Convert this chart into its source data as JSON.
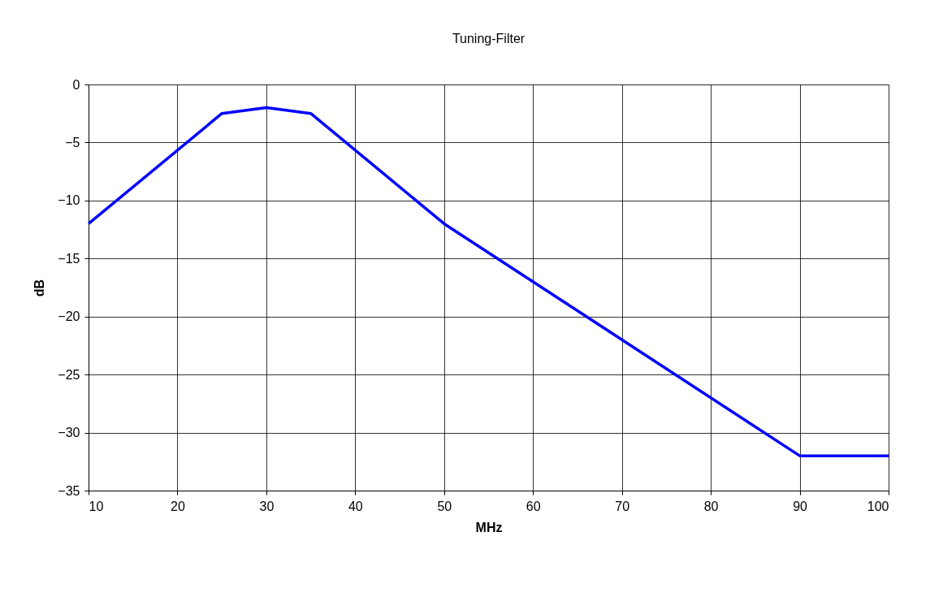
{
  "chart_data": {
    "type": "line",
    "title": "Tuning-Filter",
    "xlabel": "MHz",
    "ylabel": "dB",
    "x": [
      10,
      25,
      30,
      35,
      50,
      90,
      100
    ],
    "series": [
      {
        "color": "#0000ff",
        "values": [
          -12,
          -2.5,
          -2,
          -2.5,
          -12,
          -32,
          -32
        ]
      }
    ],
    "xlim": [
      10,
      100
    ],
    "xticks": [
      10,
      20,
      30,
      40,
      50,
      60,
      70,
      80,
      90,
      100
    ],
    "ylim": [
      -35,
      0
    ],
    "yticks": [
      -35,
      -30,
      -25,
      -20,
      -15,
      -10,
      -5,
      0
    ],
    "grid": true,
    "legend": false,
    "marker": "none",
    "line_style": "solid"
  }
}
